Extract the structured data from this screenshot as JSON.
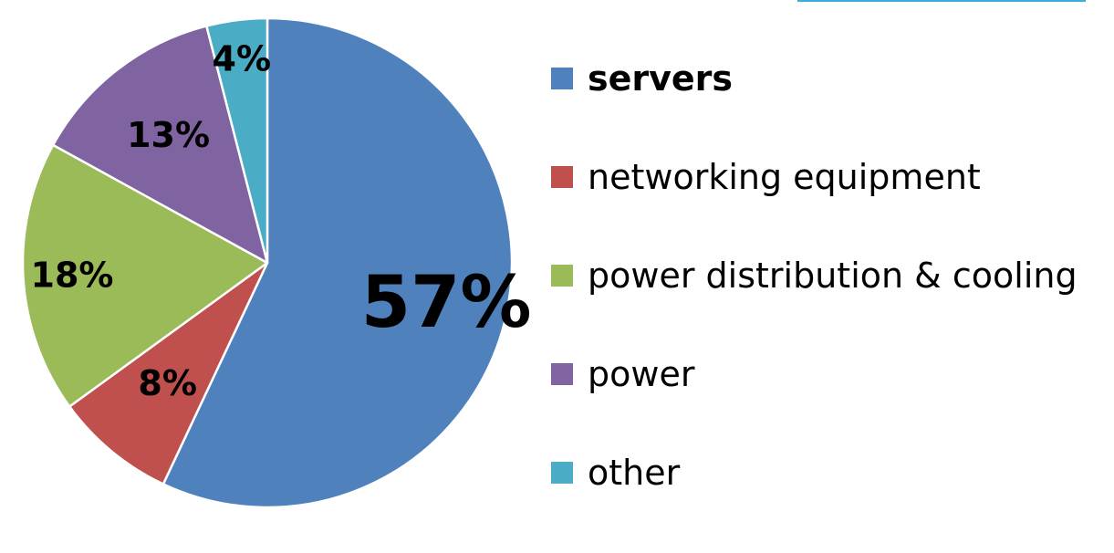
{
  "chart_data": {
    "type": "pie",
    "categories": [
      "servers",
      "networking equipment",
      "power distribution & cooling",
      "power",
      "other"
    ],
    "values": [
      57,
      8,
      18,
      13,
      4
    ],
    "labels": [
      "57%",
      "8%",
      "18%",
      "13%",
      "4%"
    ],
    "colors": [
      "#4f81bd",
      "#c0504d",
      "#9bbb59",
      "#8064a2",
      "#4bacc6"
    ],
    "title": "",
    "legend_position": "right",
    "emphasized_category": "servers"
  }
}
